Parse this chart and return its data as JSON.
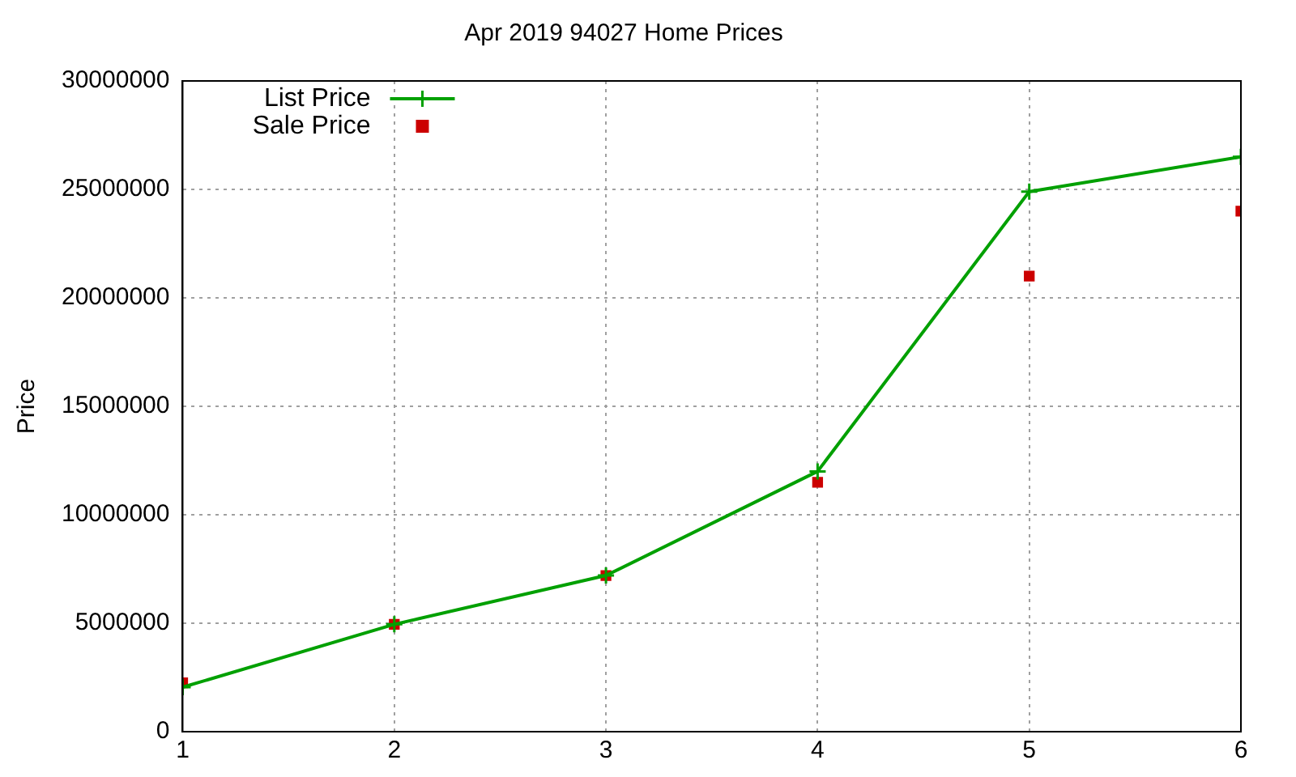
{
  "chart_data": {
    "type": "line",
    "title": "Apr 2019 94027 Home Prices",
    "ylabel": "Price",
    "x": [
      1,
      2,
      3,
      4,
      5,
      6
    ],
    "series": [
      {
        "name": "List Price",
        "color": "#00a000",
        "marker": "cross",
        "values": [
          2050000,
          4950000,
          7200000,
          12000000,
          24900000,
          26500000
        ]
      },
      {
        "name": "Sale Price",
        "type": "scatter",
        "color": "#cc0000",
        "marker": "square",
        "values": [
          2250000,
          4950000,
          7200000,
          11500000,
          21000000,
          24000000
        ]
      }
    ],
    "xlim": [
      1,
      6
    ],
    "xticks": [
      1,
      2,
      3,
      4,
      5,
      6
    ],
    "ylim": [
      0,
      30000000
    ],
    "yticks": [
      0,
      5000000,
      10000000,
      15000000,
      20000000,
      25000000,
      30000000
    ],
    "grid": true,
    "legend": "top left"
  }
}
